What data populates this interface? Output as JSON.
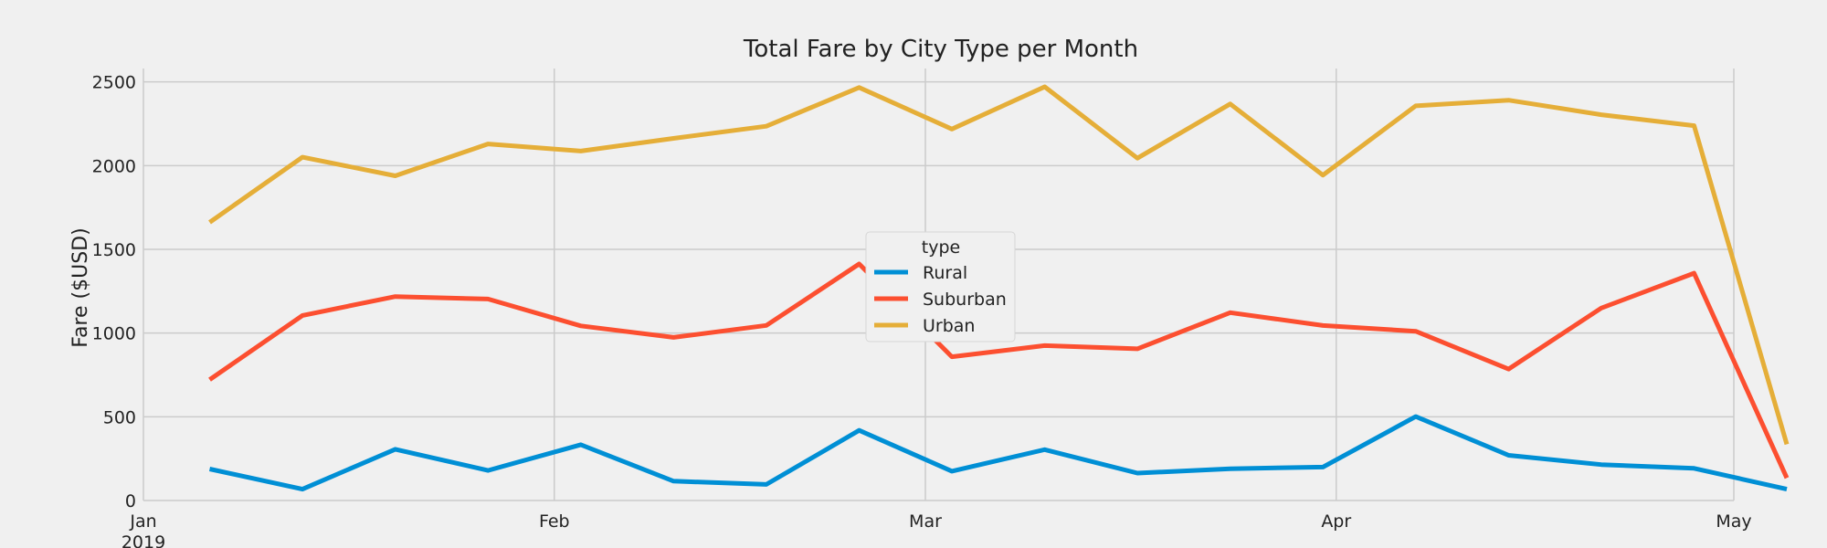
{
  "chart_data": {
    "type": "line",
    "title": "Total Fare by City Type per Month",
    "xlabel": "",
    "ylabel": "Fare ($USD)",
    "x": [
      "2019-01-06",
      "2019-01-13",
      "2019-01-20",
      "2019-01-27",
      "2019-02-03",
      "2019-02-10",
      "2019-02-17",
      "2019-02-24",
      "2019-03-03",
      "2019-03-10",
      "2019-03-17",
      "2019-03-24",
      "2019-03-31",
      "2019-04-07",
      "2019-04-14",
      "2019-04-21",
      "2019-04-28",
      "2019-05-05"
    ],
    "x_ticks": [
      {
        "date": "2019-01-01",
        "label": "Jan",
        "sublabel": "2019"
      },
      {
        "date": "2019-02-01",
        "label": "Feb",
        "sublabel": ""
      },
      {
        "date": "2019-03-01",
        "label": "Mar",
        "sublabel": ""
      },
      {
        "date": "2019-04-01",
        "label": "Apr",
        "sublabel": ""
      },
      {
        "date": "2019-05-01",
        "label": "May",
        "sublabel": ""
      }
    ],
    "xlim": [
      "2019-01-01",
      "2019-05-01"
    ],
    "ylim": [
      0,
      2580
    ],
    "y_ticks": [
      0,
      500,
      1000,
      1500,
      2000,
      2500
    ],
    "grid": true,
    "legend": {
      "title": "type",
      "placement": "center"
    },
    "series": [
      {
        "name": "Rural",
        "color": "#008fd5",
        "values": [
          187.92,
          67.65,
          306.0,
          179.69,
          333.08,
          115.8,
          95.82,
          419.06,
          175.14,
          303.94,
          163.39,
          189.76,
          199.42,
          501.24,
          269.79,
          214.14,
          191.85,
          67.6
        ]
      },
      {
        "name": "Suburban",
        "color": "#fc4f30",
        "values": [
          721.6,
          1105.13,
          1218.2,
          1203.28,
          1042.79,
          974.34,
          1045.5,
          1412.74,
          858.46,
          925.27,
          906.2,
          1122.2,
          1045.06,
          1010.73,
          784.82,
          1149.27,
          1357.75,
          135.0
        ]
      },
      {
        "name": "Urban",
        "color": "#e5ae38",
        "values": [
          1661.68,
          2050.43,
          1939.02,
          2129.51,
          2086.94,
          2162.64,
          2235.07,
          2466.29,
          2218.2,
          2470.93,
          2044.42,
          2368.37,
          1942.77,
          2356.7,
          2390.72,
          2303.8,
          2238.29,
          336.0
        ]
      }
    ]
  }
}
